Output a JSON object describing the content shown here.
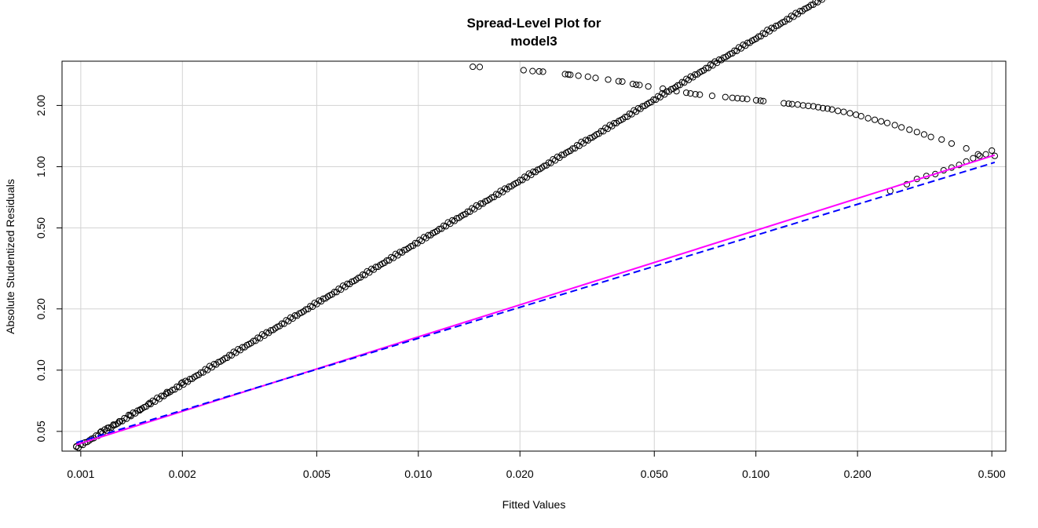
{
  "chart_data": {
    "type": "scatter",
    "title": "Spread-Level Plot for",
    "subtitle": "model3",
    "xlabel": "Fitted Values",
    "ylabel": "Absolute Studentized Residuals",
    "x_scale": "log",
    "y_scale": "log",
    "xlim": [
      0.00088,
      0.55
    ],
    "ylim": [
      0.04,
      3.3
    ],
    "x_ticks": [
      0.001,
      0.002,
      0.005,
      0.01,
      0.02,
      0.05,
      0.1,
      0.2,
      0.5
    ],
    "x_tick_labels": [
      "0.001",
      "0.002",
      "0.005",
      "0.010",
      "0.020",
      "0.050",
      "0.100",
      "0.200",
      "0.500"
    ],
    "y_ticks": [
      0.05,
      0.1,
      0.2,
      0.5,
      1.0,
      2.0
    ],
    "y_tick_labels": [
      "0.05",
      "0.10",
      "0.20",
      "0.50",
      "1.00",
      "2.00"
    ],
    "grid": true,
    "series": [
      {
        "kind": "points",
        "style": "open-circle",
        "description_group": "lower-branch",
        "x_range": [
          0.00097,
          0.51
        ],
        "relation": "y = 43.5 * x",
        "sample_x": [
          0.00097,
          0.00115,
          0.0012,
          0.00125,
          0.0013,
          0.0014,
          0.0015,
          0.0016,
          0.0018,
          0.002,
          0.25,
          0.28,
          0.3,
          0.32,
          0.34,
          0.36,
          0.38,
          0.4,
          0.42,
          0.44,
          0.46,
          0.48,
          0.5
        ],
        "sample_y": [
          0.042,
          0.05,
          0.052,
          0.054,
          0.056,
          0.06,
          0.064,
          0.069,
          0.078,
          0.087,
          0.76,
          0.82,
          0.87,
          0.9,
          0.92,
          0.96,
          0.99,
          1.02,
          1.06,
          1.1,
          1.13,
          1.15,
          1.2
        ]
      },
      {
        "kind": "points",
        "style": "open-circle",
        "description_group": "upper-branch",
        "x": [
          0.0145,
          0.0152,
          0.0205,
          0.0218,
          0.0228,
          0.0234,
          0.0272,
          0.0278,
          0.0282,
          0.0298,
          0.0318,
          0.0335,
          0.0365,
          0.0392,
          0.0402,
          0.0432,
          0.0442,
          0.0452,
          0.048,
          0.053,
          0.0582,
          0.0622,
          0.064,
          0.0662,
          0.0682,
          0.0742,
          0.0812,
          0.0852,
          0.0882,
          0.0912,
          0.0942,
          0.1002,
          0.1032,
          0.1052,
          0.121,
          0.125,
          0.128,
          0.133,
          0.138,
          0.143,
          0.148,
          0.153,
          0.158,
          0.163,
          0.168,
          0.175,
          0.182,
          0.19,
          0.198,
          0.205,
          0.215,
          0.225,
          0.235,
          0.245,
          0.258,
          0.27,
          0.285,
          0.3,
          0.315,
          0.33,
          0.355,
          0.38,
          0.42,
          0.455,
          0.51
        ],
        "y": [
          3.1,
          3.09,
          2.98,
          2.95,
          2.94,
          2.93,
          2.85,
          2.84,
          2.83,
          2.8,
          2.77,
          2.73,
          2.68,
          2.63,
          2.62,
          2.55,
          2.53,
          2.52,
          2.48,
          2.42,
          2.35,
          2.31,
          2.29,
          2.27,
          2.26,
          2.23,
          2.2,
          2.18,
          2.17,
          2.16,
          2.15,
          2.12,
          2.11,
          2.1,
          2.05,
          2.04,
          2.03,
          2.02,
          2.0,
          1.99,
          1.98,
          1.96,
          1.94,
          1.93,
          1.91,
          1.88,
          1.86,
          1.83,
          1.8,
          1.77,
          1.73,
          1.7,
          1.67,
          1.64,
          1.6,
          1.56,
          1.52,
          1.48,
          1.44,
          1.4,
          1.36,
          1.3,
          1.23,
          1.15,
          1.13
        ]
      },
      {
        "kind": "line",
        "style": "solid",
        "color": "#ff00ff",
        "x": [
          0.00097,
          0.51
        ],
        "y": [
          0.043,
          1.14
        ]
      },
      {
        "kind": "line",
        "style": "dashed",
        "color": "#0000ff",
        "x": [
          0.00097,
          0.51
        ],
        "y": [
          0.044,
          1.05
        ]
      }
    ]
  }
}
